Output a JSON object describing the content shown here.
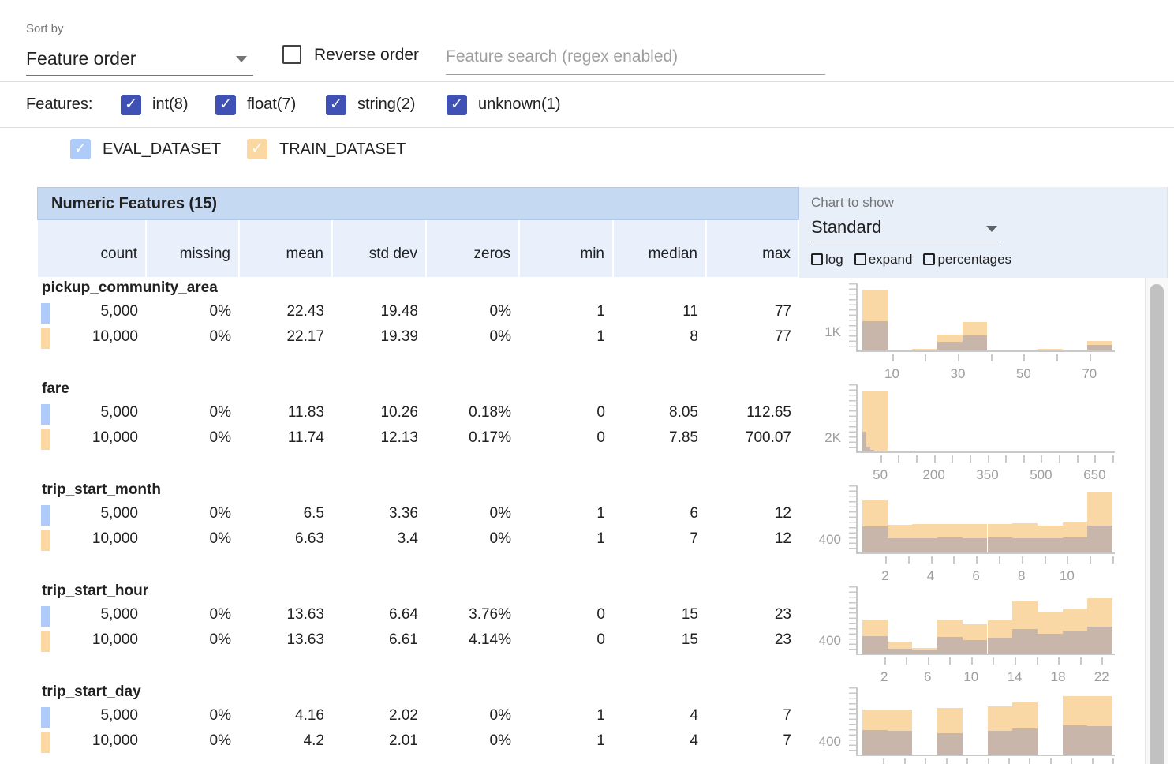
{
  "toolbar": {
    "sort_by_label": "Sort by",
    "sort_value": "Feature order",
    "reverse_label": "Reverse order",
    "search_placeholder": "Feature search (regex enabled)"
  },
  "features_filter": {
    "label": "Features:",
    "items": [
      {
        "label": "int(8)",
        "checked": true
      },
      {
        "label": "float(7)",
        "checked": true
      },
      {
        "label": "string(2)",
        "checked": true
      },
      {
        "label": "unknown(1)",
        "checked": true
      }
    ]
  },
  "dataset_legend": {
    "items": [
      {
        "label": "EVAL_DATASET",
        "color": "#aecbfa",
        "checked": true
      },
      {
        "label": "TRAIN_DATASET",
        "color": "#fbd7a2",
        "checked": true
      }
    ]
  },
  "table": {
    "title": "Numeric Features (15)",
    "columns": [
      "count",
      "missing",
      "mean",
      "std dev",
      "zeros",
      "min",
      "median",
      "max"
    ],
    "features": [
      {
        "name": "pickup_community_area",
        "rows": [
          [
            "5,000",
            "0%",
            "22.43",
            "19.48",
            "0%",
            "1",
            "11",
            "77"
          ],
          [
            "10,000",
            "0%",
            "22.17",
            "19.39",
            "0%",
            "1",
            "8",
            "77"
          ]
        ]
      },
      {
        "name": "fare",
        "rows": [
          [
            "5,000",
            "0%",
            "11.83",
            "10.26",
            "0.18%",
            "0",
            "8.05",
            "112.65"
          ],
          [
            "10,000",
            "0%",
            "11.74",
            "12.13",
            "0.17%",
            "0",
            "7.85",
            "700.07"
          ]
        ]
      },
      {
        "name": "trip_start_month",
        "rows": [
          [
            "5,000",
            "0%",
            "6.5",
            "3.36",
            "0%",
            "1",
            "6",
            "12"
          ],
          [
            "10,000",
            "0%",
            "6.63",
            "3.4",
            "0%",
            "1",
            "7",
            "12"
          ]
        ]
      },
      {
        "name": "trip_start_hour",
        "rows": [
          [
            "5,000",
            "0%",
            "13.63",
            "6.64",
            "3.76%",
            "0",
            "15",
            "23"
          ],
          [
            "10,000",
            "0%",
            "13.63",
            "6.61",
            "4.14%",
            "0",
            "15",
            "23"
          ]
        ]
      },
      {
        "name": "trip_start_day",
        "rows": [
          [
            "5,000",
            "0%",
            "4.16",
            "2.02",
            "0%",
            "1",
            "4",
            "7"
          ],
          [
            "10,000",
            "0%",
            "4.2",
            "2.01",
            "0%",
            "1",
            "4",
            "7"
          ]
        ]
      }
    ]
  },
  "chart_controls": {
    "label": "Chart to show",
    "selected": "Standard",
    "options": [
      {
        "label": "log",
        "checked": false
      },
      {
        "label": "expand",
        "checked": false
      },
      {
        "label": "percentages",
        "checked": false
      }
    ]
  },
  "chart_colors": {
    "train": "#fad8a6",
    "eval_overlap": "#c8b6aa",
    "eval_chip": "#aecbfa",
    "train_chip": "#fbd7a2"
  },
  "chart_data": [
    {
      "type": "bar",
      "feature": "pickup_community_area",
      "series_names": [
        "TRAIN_DATASET",
        "EVAL_DATASET"
      ],
      "x_range": [
        1,
        77
      ],
      "axis_max": 3500,
      "y_gridline": {
        "label": "1K",
        "value": 1000
      },
      "x_ticks": {
        "start": 10,
        "step": 10,
        "end": 77,
        "labeled": [
          10,
          30,
          50,
          70
        ]
      },
      "train_bars": [
        [
          1,
          8.6,
          3300
        ],
        [
          8.6,
          16.2,
          25
        ],
        [
          16.2,
          23.8,
          90
        ],
        [
          23.8,
          31.4,
          840
        ],
        [
          31.4,
          39,
          1550
        ],
        [
          39,
          46.6,
          20
        ],
        [
          46.6,
          54.2,
          35
        ],
        [
          54.2,
          61.8,
          100
        ],
        [
          61.8,
          69.4,
          20
        ],
        [
          69.4,
          77,
          520
        ]
      ],
      "eval_bars": [
        [
          1,
          8.6,
          1570
        ],
        [
          8.6,
          16.2,
          12
        ],
        [
          16.2,
          23.8,
          35
        ],
        [
          23.8,
          31.4,
          490
        ],
        [
          31.4,
          39,
          800
        ],
        [
          39,
          46.6,
          8
        ],
        [
          46.6,
          54.2,
          15
        ],
        [
          54.2,
          61.8,
          40
        ],
        [
          61.8,
          69.4,
          8
        ],
        [
          69.4,
          77,
          280
        ]
      ]
    },
    {
      "type": "bar",
      "feature": "fare",
      "series_names": [
        "TRAIN_DATASET",
        "EVAL_DATASET"
      ],
      "x_range": [
        0,
        700
      ],
      "axis_max": 9500,
      "y_gridline": {
        "label": "2K",
        "value": 2000
      },
      "x_ticks": {
        "start": 50,
        "step": 50,
        "end": 700,
        "labeled": [
          50,
          200,
          350,
          500,
          650
        ]
      },
      "train_bars": [
        [
          0,
          70,
          8800
        ],
        [
          70,
          140,
          60
        ]
      ],
      "eval_bars": [
        [
          0,
          11.3,
          2950
        ],
        [
          11.3,
          22.6,
          700
        ],
        [
          22.6,
          33.9,
          280
        ],
        [
          33.9,
          45.2,
          110
        ]
      ]
    },
    {
      "type": "bar",
      "feature": "trip_start_month",
      "series_names": [
        "TRAIN_DATASET",
        "EVAL_DATASET"
      ],
      "x_range": [
        1,
        12
      ],
      "axis_max": 2000,
      "y_gridline": {
        "label": "400",
        "value": 400
      },
      "x_ticks": {
        "start": 2,
        "step": 1,
        "end": 12,
        "labeled": [
          2,
          4,
          6,
          8,
          10
        ]
      },
      "train_bars": [
        [
          1,
          2.1,
          1600
        ],
        [
          2.1,
          3.2,
          850
        ],
        [
          3.2,
          4.3,
          880
        ],
        [
          4.3,
          5.4,
          890
        ],
        [
          5.4,
          6.5,
          870
        ],
        [
          6.5,
          7.6,
          870
        ],
        [
          7.6,
          8.7,
          900
        ],
        [
          8.7,
          9.8,
          830
        ],
        [
          9.8,
          10.9,
          960
        ],
        [
          10.9,
          12,
          1860
        ]
      ],
      "eval_bars": [
        [
          1,
          2.1,
          800
        ],
        [
          2.1,
          3.2,
          430
        ],
        [
          3.2,
          4.3,
          450
        ],
        [
          4.3,
          5.4,
          460
        ],
        [
          5.4,
          6.5,
          450
        ],
        [
          6.5,
          7.6,
          455
        ],
        [
          7.6,
          8.7,
          445
        ],
        [
          8.7,
          9.8,
          430
        ],
        [
          9.8,
          10.9,
          465
        ],
        [
          10.9,
          12,
          820
        ]
      ]
    },
    {
      "type": "bar",
      "feature": "trip_start_hour",
      "series_names": [
        "TRAIN_DATASET",
        "EVAL_DATASET"
      ],
      "x_range": [
        0,
        23
      ],
      "axis_max": 2000,
      "y_gridline": {
        "label": "400",
        "value": 400
      },
      "x_ticks": {
        "start": 2,
        "step": 2,
        "end": 23,
        "labeled": [
          2,
          6,
          10,
          14,
          18,
          22
        ]
      },
      "train_bars": [
        [
          0,
          2.3,
          1060
        ],
        [
          2.3,
          4.6,
          360
        ],
        [
          4.6,
          6.9,
          160
        ],
        [
          6.9,
          9.2,
          1040
        ],
        [
          9.2,
          11.5,
          900
        ],
        [
          11.5,
          13.8,
          1020
        ],
        [
          13.8,
          16.1,
          1600
        ],
        [
          16.1,
          18.4,
          1280
        ],
        [
          18.4,
          20.7,
          1400
        ],
        [
          20.7,
          23,
          1720
        ]
      ],
      "eval_bars": [
        [
          0,
          2.3,
          540
        ],
        [
          2.3,
          4.6,
          140
        ],
        [
          4.6,
          6.9,
          100
        ],
        [
          6.9,
          9.2,
          520
        ],
        [
          9.2,
          11.5,
          420
        ],
        [
          11.5,
          13.8,
          480
        ],
        [
          13.8,
          16.1,
          760
        ],
        [
          16.1,
          18.4,
          600
        ],
        [
          18.4,
          20.7,
          700
        ],
        [
          20.7,
          23,
          820
        ]
      ]
    },
    {
      "type": "bar",
      "feature": "trip_start_day",
      "series_names": [
        "TRAIN_DATASET",
        "EVAL_DATASET"
      ],
      "x_range": [
        1,
        7
      ],
      "axis_max": 2000,
      "y_gridline": {
        "label": "400",
        "value": 400
      },
      "x_ticks": {
        "start": 1.5,
        "step": 0.5,
        "end": 7,
        "labeled": []
      },
      "train_bars": [
        [
          1,
          1.6,
          1400
        ],
        [
          1.6,
          2.2,
          1400
        ],
        [
          2.8,
          3.4,
          1440
        ],
        [
          4,
          4.6,
          1480
        ],
        [
          4.6,
          5.2,
          1600
        ],
        [
          5.8,
          6.4,
          1800
        ],
        [
          6.4,
          7,
          1800
        ]
      ],
      "eval_bars": [
        [
          1,
          1.6,
          760
        ],
        [
          1.6,
          2.2,
          740
        ],
        [
          2.8,
          3.4,
          660
        ],
        [
          4,
          4.6,
          740
        ],
        [
          4.6,
          5.2,
          800
        ],
        [
          5.8,
          6.4,
          900
        ],
        [
          6.4,
          7,
          880
        ]
      ]
    }
  ]
}
